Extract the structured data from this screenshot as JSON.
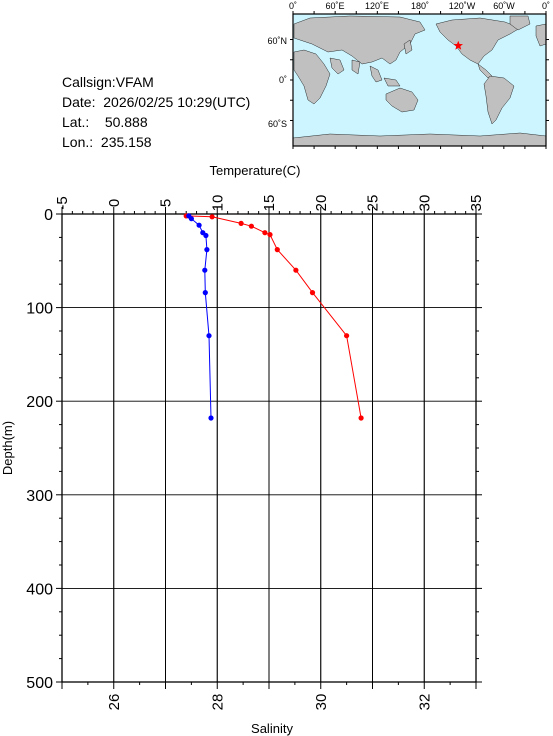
{
  "station": {
    "callsign_label": "Callsign:",
    "callsign": "VFAM",
    "date_label": "Date:",
    "date": "2026/02/25 10:29(UTC)",
    "lat_label": "Lat.:",
    "lat": "50.888",
    "lon_label": "Lon.:",
    "lon": "235.158"
  },
  "map": {
    "lon_labels": [
      "0˚",
      "60˚E",
      "120˚E",
      "180˚",
      "120˚W",
      "60˚W",
      "0˚"
    ],
    "lat_labels": [
      "60˚N",
      "0˚",
      "60˚S"
    ],
    "ocean_color": "#ccf5ff",
    "land_color": "#c0c0c0",
    "marker_icon": "star-icon",
    "marker_color": "#ff0000",
    "marker_lat": 50.888,
    "marker_lon": 235.158
  },
  "chart_data": {
    "type": "line",
    "top_axis_label": "Temperature(C)",
    "bottom_axis_label": "Salinity",
    "ylabel": "Depth(m)",
    "temperature_ticks": [
      "-5",
      "0",
      "5",
      "10",
      "15",
      "20",
      "25",
      "30",
      "35"
    ],
    "salinity_ticks": [
      "26",
      "28",
      "30",
      "32"
    ],
    "depth_ticks": [
      "0",
      "100",
      "200",
      "300",
      "400",
      "500"
    ],
    "temperature_range": [
      -5,
      35
    ],
    "salinity_range": [
      25,
      33
    ],
    "depth_range": [
      0,
      500
    ],
    "grid": true,
    "series": [
      {
        "quantity": "temperature",
        "color": "#ff0000",
        "points": [
          {
            "depth": 2,
            "value": 7.0
          },
          {
            "depth": 3,
            "value": 9.5
          },
          {
            "depth": 10,
            "value": 12.3
          },
          {
            "depth": 13,
            "value": 13.3
          },
          {
            "depth": 20,
            "value": 14.6
          },
          {
            "depth": 22,
            "value": 15.1
          },
          {
            "depth": 38,
            "value": 15.8
          },
          {
            "depth": 60,
            "value": 17.6
          },
          {
            "depth": 84,
            "value": 19.2
          },
          {
            "depth": 130,
            "value": 22.5
          },
          {
            "depth": 218,
            "value": 23.9
          }
        ]
      },
      {
        "quantity": "salinity",
        "color": "#0000ff",
        "points": [
          {
            "depth": 2,
            "value": 27.45
          },
          {
            "depth": 5,
            "value": 27.5
          },
          {
            "depth": 12,
            "value": 27.65
          },
          {
            "depth": 20,
            "value": 27.72
          },
          {
            "depth": 23,
            "value": 27.78
          },
          {
            "depth": 38,
            "value": 27.8
          },
          {
            "depth": 60,
            "value": 27.76
          },
          {
            "depth": 84,
            "value": 27.77
          },
          {
            "depth": 130,
            "value": 27.84
          },
          {
            "depth": 218,
            "value": 27.88
          }
        ]
      }
    ]
  }
}
